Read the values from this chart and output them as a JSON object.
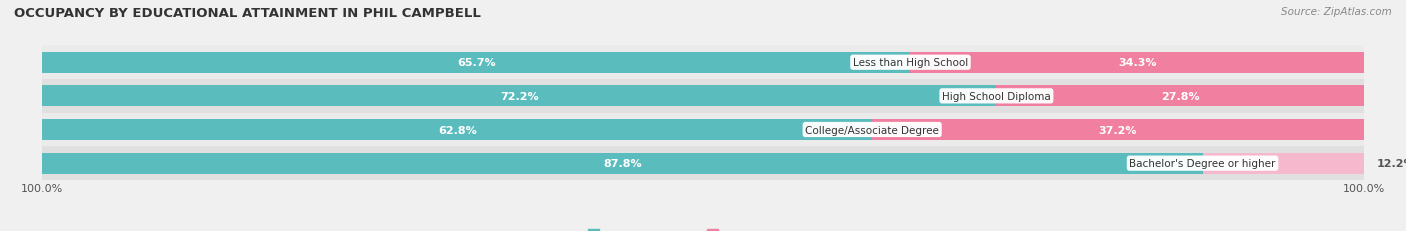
{
  "title": "OCCUPANCY BY EDUCATIONAL ATTAINMENT IN PHIL CAMPBELL",
  "source": "Source: ZipAtlas.com",
  "categories": [
    "Less than High School",
    "High School Diploma",
    "College/Associate Degree",
    "Bachelor's Degree or higher"
  ],
  "owner_values": [
    65.7,
    72.2,
    62.8,
    87.8
  ],
  "renter_values": [
    34.3,
    27.8,
    37.2,
    12.2
  ],
  "owner_color": "#5bbcbe",
  "renter_colors": [
    "#f07fa0",
    "#f07fa0",
    "#f07fa0",
    "#f5b8cc"
  ],
  "title_fontsize": 9.5,
  "label_fontsize": 8.0,
  "tick_fontsize": 8.0,
  "bar_height": 0.62,
  "row_bg_even": "#ebebeb",
  "row_bg_odd": "#e0e0e0",
  "fig_bg": "#f0f0f0"
}
